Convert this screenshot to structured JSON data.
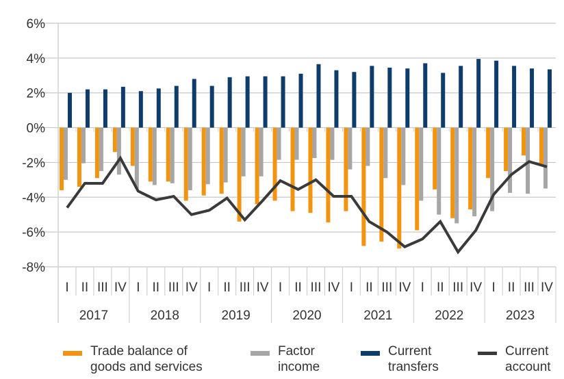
{
  "chart_data": {
    "type": "bar",
    "title": "",
    "xlabel": "",
    "ylabel": "",
    "ylim": [
      -8,
      6
    ],
    "yticks": [
      6,
      4,
      2,
      0,
      -2,
      -4,
      -6,
      -8
    ],
    "ytick_labels": [
      "6%",
      "4%",
      "2%",
      "0%",
      "-2%",
      "-4%",
      "-6%",
      "-8%"
    ],
    "grid": "horizontal",
    "legend_position": "bottom",
    "years": [
      "2017",
      "2018",
      "2019",
      "2020",
      "2021",
      "2022",
      "2023"
    ],
    "quarter_labels": [
      "I",
      "II",
      "III",
      "IV"
    ],
    "series": [
      {
        "name": "Trade balance of\ngoods and services",
        "type": "bar",
        "color": "#F39410",
        "values": [
          -3.6,
          -3.4,
          -2.9,
          -1.4,
          -2.2,
          -3.1,
          -3.1,
          -4.2,
          -3.9,
          -3.8,
          -5.4,
          -4.4,
          -4.2,
          -4.8,
          -4.9,
          -5.45,
          -4.8,
          -6.8,
          -6.55,
          -6.95,
          -5.9,
          -3.55,
          -5.2,
          -4.7,
          -2.9,
          -2.5,
          -1.6,
          -2.1
        ]
      },
      {
        "name": "Factor\nincome",
        "type": "bar",
        "color": "#A6A6A6",
        "values": [
          -3.0,
          -2.05,
          -2.5,
          -2.7,
          -3.5,
          -3.3,
          -3.2,
          -3.6,
          -3.25,
          -3.15,
          -2.8,
          -2.8,
          -1.85,
          -1.85,
          -1.75,
          -1.85,
          -2.4,
          -2.2,
          -2.9,
          -3.3,
          -4.2,
          -5.0,
          -5.5,
          -5.1,
          -4.8,
          -3.75,
          -3.8,
          -3.5
        ]
      },
      {
        "name": "Current\ntransfers",
        "type": "bar",
        "color": "#0F3D6B",
        "values": [
          2.0,
          2.2,
          2.2,
          2.35,
          2.1,
          2.25,
          2.4,
          2.8,
          2.4,
          2.9,
          2.95,
          2.95,
          2.95,
          3.1,
          3.65,
          3.3,
          3.2,
          3.55,
          3.45,
          3.4,
          3.7,
          3.15,
          3.55,
          3.95,
          3.85,
          3.55,
          3.4,
          3.35
        ]
      },
      {
        "name": "Current\naccount",
        "type": "line",
        "color": "#3A3A3A",
        "values": [
          -4.6,
          -3.2,
          -3.2,
          -1.75,
          -3.65,
          -4.15,
          -3.95,
          -5.0,
          -4.75,
          -4.05,
          -5.3,
          -4.2,
          -3.05,
          -3.55,
          -3.0,
          -3.95,
          -3.95,
          -5.4,
          -6.0,
          -6.85,
          -6.4,
          -5.4,
          -7.15,
          -5.9,
          -3.85,
          -2.7,
          -1.95,
          -2.25
        ]
      }
    ]
  }
}
